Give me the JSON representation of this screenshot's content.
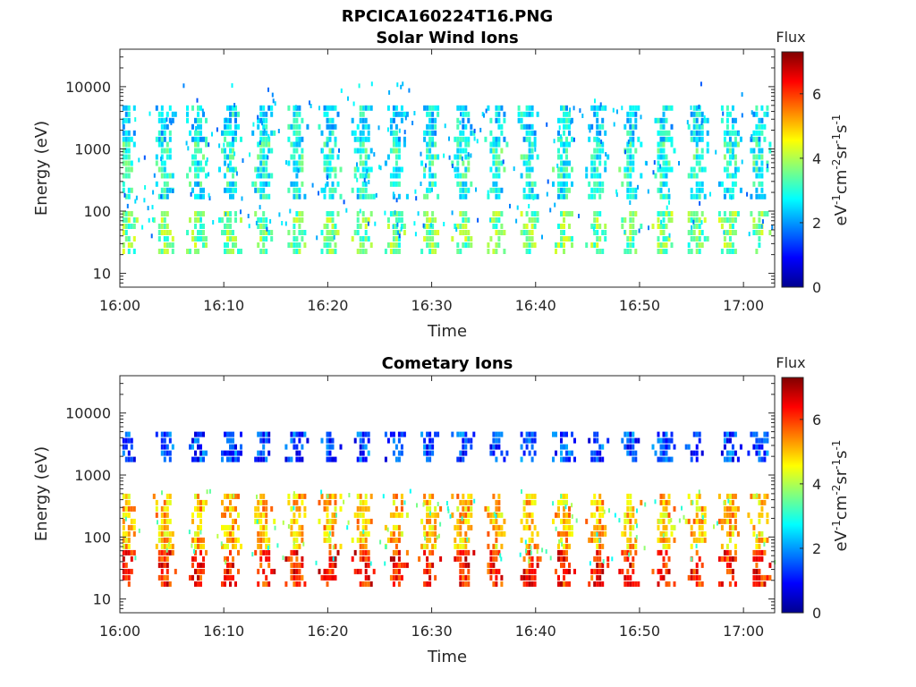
{
  "figure": {
    "title": "RPCICA160224T16.PNG"
  },
  "chart_data": [
    {
      "type": "heatmap",
      "title": "Solar Wind Ions",
      "xlabel": "Time",
      "ylabel": "Energy (eV)",
      "x_range": [
        "16:00",
        "17:03"
      ],
      "x_ticks": [
        "16:00",
        "16:10",
        "16:20",
        "16:30",
        "16:40",
        "16:50",
        "17:00"
      ],
      "y_scale": "log",
      "y_range": [
        6,
        40000
      ],
      "y_ticks": [
        "10",
        "100",
        "1000",
        "10000"
      ],
      "colorbar": {
        "title": "Flux",
        "label": "eV-1cm-2sr-1s-1",
        "range": [
          0,
          7.3
        ],
        "ticks": [
          "0",
          "2",
          "4",
          "6"
        ],
        "colormap": "jet"
      },
      "bursts_minutes": [
        0.5,
        4.2,
        7.4,
        10.5,
        13.7,
        16.9,
        20.1,
        23.3,
        26.5,
        29.7,
        32.9,
        36.1,
        39.3,
        42.6,
        45.8,
        49.0,
        52.2,
        55.4,
        58.6,
        61.4
      ],
      "populations": [
        {
          "name": "",
          "energy_ev": [
            1500,
            5000
          ],
          "typical_flux": 2.6
        },
        {
          "name": "",
          "energy_ev": [
            400,
            1300
          ],
          "typical_flux": 3.0
        },
        {
          "name": "",
          "energy_ev": [
            150,
            300
          ],
          "typical_flux": 2.8
        },
        {
          "name": "",
          "energy_ev": [
            20,
            100
          ],
          "typical_flux": 3.6
        }
      ]
    },
    {
      "type": "heatmap",
      "title": "Cometary Ions",
      "xlabel": "Time",
      "ylabel": "Energy (eV)",
      "x_range": [
        "16:00",
        "17:03"
      ],
      "x_ticks": [
        "16:00",
        "16:10",
        "16:20",
        "16:30",
        "16:40",
        "16:50",
        "17:00"
      ],
      "y_scale": "log",
      "y_range": [
        6,
        40000
      ],
      "y_ticks": [
        "10",
        "100",
        "1000",
        "10000"
      ],
      "colorbar": {
        "title": "Flux",
        "label": "eV-1cm-2sr-1s-1",
        "range": [
          0,
          7.3
        ],
        "ticks": [
          "0",
          "2",
          "4",
          "6"
        ],
        "colormap": "jet"
      },
      "bursts_minutes": [
        0.5,
        4.2,
        7.4,
        10.5,
        13.7,
        16.9,
        20.1,
        23.3,
        26.5,
        29.7,
        32.9,
        36.1,
        39.3,
        42.6,
        45.8,
        49.0,
        52.2,
        55.4,
        58.6,
        61.4
      ],
      "populations": [
        {
          "name": "",
          "energy_ev": [
            1800,
            5000
          ],
          "typical_flux": 1.4
        },
        {
          "name": "",
          "energy_ev": [
            18,
            500
          ],
          "typical_flux": 5.0
        }
      ]
    }
  ]
}
